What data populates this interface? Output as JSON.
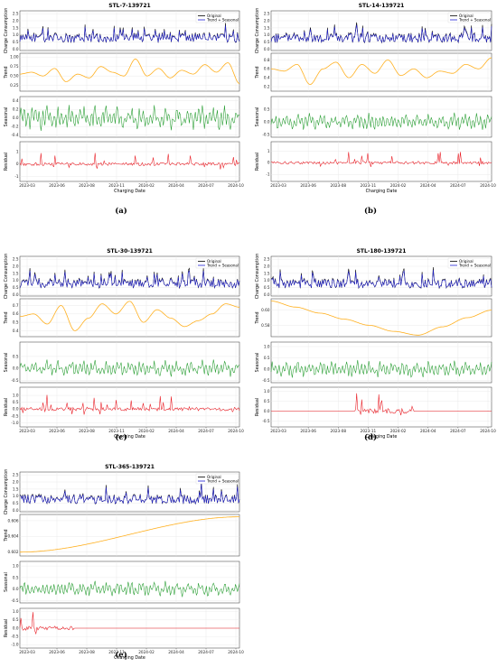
{
  "colors": {
    "original": "#000000",
    "trend_seasonal": "#1f1fd6",
    "trend": "#ffb020",
    "seasonal": "#1f9a2a",
    "residual": "#e8141c",
    "grid": "#e6e6e6"
  },
  "legend": {
    "original": "Original",
    "trend_seasonal": "Trend + Seasonal"
  },
  "row_labels": [
    "Charge Consumption",
    "Trend",
    "Seasonal",
    "Residual"
  ],
  "xlabel": "Charging Date",
  "x_ticks": [
    "2023-03",
    "2023-06",
    "2023-08",
    "2023-11",
    "2024-02",
    "2024-04",
    "2024-07",
    "2024-10"
  ],
  "chart_data": [
    {
      "type": "line",
      "title": "STL-7-139721",
      "panel_label": "(a)",
      "x_range": [
        "2023-01",
        "2024-10"
      ],
      "y_ticks": {
        "charge": [
          "0.0",
          "0.5",
          "1.0",
          "1.5",
          "2.0",
          "2.5"
        ],
        "trend": [
          "0.25",
          "0.50",
          "0.75",
          "1.00"
        ],
        "seasonal": [
          "-0.4",
          "-0.2",
          "0.0",
          "0.2",
          "0.4"
        ],
        "residual": [
          "-1",
          "0",
          "1"
        ]
      },
      "ylim": {
        "charge": [
          -0.1,
          2.7
        ],
        "trend": [
          0.1,
          1.1
        ],
        "seasonal": [
          -0.45,
          0.5
        ],
        "residual": [
          -1.4,
          1.8
        ]
      },
      "trend_keypoints": [
        0.55,
        0.6,
        0.5,
        0.7,
        0.35,
        0.55,
        0.45,
        0.75,
        0.6,
        0.5,
        0.95,
        0.5,
        0.7,
        0.45,
        0.65,
        0.55,
        0.8,
        0.6,
        0.85,
        0.3
      ],
      "seasonal_amplitude": 0.25,
      "residual_amplitude": 0.8
    },
    {
      "type": "line",
      "title": "STL-14-139721",
      "panel_label": "(b)",
      "x_range": [
        "2023-01",
        "2024-10"
      ],
      "y_ticks": {
        "charge": [
          "0.0",
          "0.5",
          "1.0",
          "1.5",
          "2.0",
          "2.5"
        ],
        "trend": [
          "0.2",
          "0.4",
          "0.6",
          "0.8"
        ],
        "seasonal": [
          "-0.5",
          "0.0",
          "0.5"
        ],
        "residual": [
          "-1",
          "0",
          "1"
        ]
      },
      "ylim": {
        "charge": [
          -0.1,
          2.7
        ],
        "trend": [
          0.1,
          0.95
        ],
        "seasonal": [
          -0.6,
          1.0
        ],
        "residual": [
          -1.6,
          1.8
        ]
      },
      "trend_keypoints": [
        0.6,
        0.55,
        0.7,
        0.25,
        0.6,
        0.75,
        0.4,
        0.7,
        0.5,
        0.8,
        0.45,
        0.6,
        0.4,
        0.55,
        0.5,
        0.7,
        0.6,
        0.85
      ],
      "seasonal_amplitude": 0.3,
      "residual_amplitude": 0.7
    },
    {
      "type": "line",
      "title": "STL-30-139721",
      "panel_label": "(c)",
      "x_range": [
        "2023-01",
        "2024-10"
      ],
      "y_ticks": {
        "charge": [
          "0.0",
          "0.5",
          "1.0",
          "1.5",
          "2.0",
          "2.5"
        ],
        "trend": [
          "0.4",
          "0.5",
          "0.6",
          "0.7"
        ],
        "seasonal": [
          "-0.5",
          "0.0",
          "0.5"
        ],
        "residual": [
          "-1.0",
          "-0.5",
          "0.0",
          "0.5",
          "1.0"
        ]
      },
      "ylim": {
        "charge": [
          -0.1,
          2.7
        ],
        "trend": [
          0.33,
          0.78
        ],
        "seasonal": [
          -0.6,
          1.1
        ],
        "residual": [
          -1.3,
          1.6
        ]
      },
      "trend_keypoints": [
        0.57,
        0.6,
        0.48,
        0.7,
        0.4,
        0.55,
        0.72,
        0.6,
        0.75,
        0.5,
        0.65,
        0.55,
        0.45,
        0.52,
        0.6,
        0.72,
        0.68
      ],
      "seasonal_amplitude": 0.3,
      "residual_amplitude": 0.7
    },
    {
      "type": "line",
      "title": "STL-180-139721",
      "panel_label": "(d)",
      "x_range": [
        "2023-01",
        "2024-10"
      ],
      "y_ticks": {
        "charge": [
          "0.0",
          "0.5",
          "1.0",
          "1.5",
          "2.0",
          "2.5"
        ],
        "trend": [
          "0.58",
          "0.60"
        ],
        "seasonal": [
          "-0.5",
          "0.0",
          "0.5",
          "1.0"
        ],
        "residual": [
          "-0.5",
          "0.0",
          "0.5",
          "1.0"
        ]
      },
      "ylim": {
        "charge": [
          -0.1,
          2.7
        ],
        "trend": [
          0.565,
          0.615
        ],
        "seasonal": [
          -0.6,
          1.2
        ],
        "residual": [
          -0.8,
          1.2
        ]
      },
      "trend_keypoints": [
        0.612,
        0.604,
        0.596,
        0.588,
        0.58,
        0.572,
        0.567,
        0.578,
        0.59,
        0.6
      ],
      "seasonal_amplitude": 0.35,
      "residual_amplitude": 0.75
    },
    {
      "type": "line",
      "title": "STL-365-139721",
      "panel_label": "(e)",
      "x_range": [
        "2023-01",
        "2024-10"
      ],
      "y_ticks": {
        "charge": [
          "0.0",
          "0.5",
          "1.0",
          "1.5",
          "2.0",
          "2.5"
        ],
        "trend": [
          "0.602",
          "0.604",
          "0.606"
        ],
        "seasonal": [
          "-0.5",
          "0.0",
          "0.5",
          "1.0"
        ],
        "residual": [
          "-1.0",
          "-0.5",
          "0.0",
          "0.5",
          "1.0"
        ]
      },
      "ylim": {
        "charge": [
          -0.1,
          2.7
        ],
        "trend": [
          0.6015,
          0.6068
        ],
        "seasonal": [
          -0.6,
          1.2
        ],
        "residual": [
          -1.2,
          1.2
        ]
      },
      "trend_keypoints": [
        0.602,
        0.6065
      ],
      "seasonal_amplitude": 0.3,
      "residual_amplitude": 0.8
    }
  ]
}
